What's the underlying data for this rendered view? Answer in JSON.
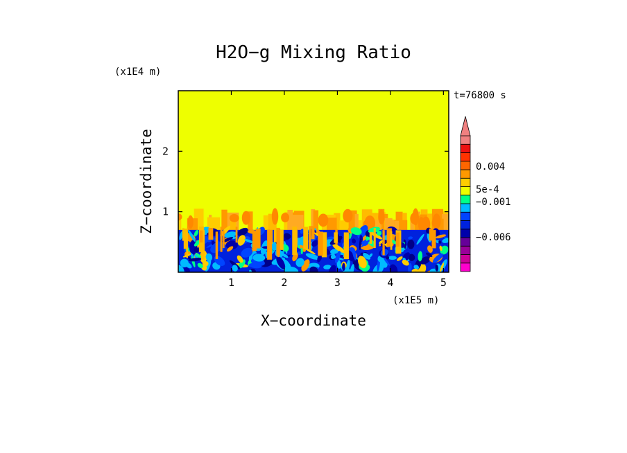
{
  "chart_data": {
    "type": "heatmap",
    "title": "H2O−g Mixing Ratio",
    "time_label": "t=76800 s",
    "xlabel": "X−coordinate",
    "ylabel": "Z−coordinate",
    "x_unit": "(x1E5 m)",
    "y_unit": "(x1E4 m)",
    "x_ticks": [
      "1",
      "2",
      "3",
      "4",
      "5"
    ],
    "y_ticks": [
      "1",
      "2"
    ],
    "xlim": [
      0,
      5.1
    ],
    "ylim": [
      0,
      3
    ],
    "upper_layer_value_color": "#eeff00",
    "boundary_layer_top": 0.7,
    "plume_top": 1.05,
    "colorbar": {
      "labels": [
        "0.004",
        "5e-4",
        "−0.001",
        "−0.006"
      ],
      "colors": [
        "#ff00cc",
        "#cc0099",
        "#990099",
        "#660099",
        "#0000aa",
        "#0022dd",
        "#0044ff",
        "#00bbff",
        "#00ff88",
        "#eeff00",
        "#ffcc00",
        "#ff9900",
        "#ff6600",
        "#ff3300",
        "#ee1111",
        "#f08080"
      ]
    }
  }
}
